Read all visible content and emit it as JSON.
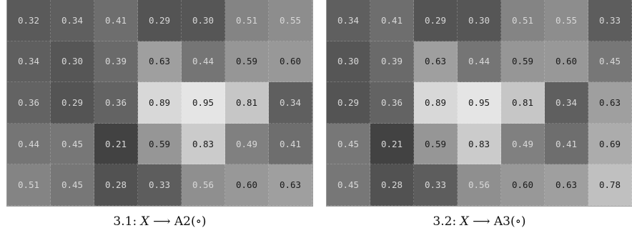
{
  "panels": [
    {
      "caption": "3.1: ",
      "caption_var": "X",
      "caption_arrow": " ⟶ ",
      "caption_target": "A2(∘)",
      "rows": [
        [
          "0.32",
          "0.34",
          "0.41",
          "0.29",
          "0.30",
          "0.51",
          "0.55"
        ],
        [
          "0.34",
          "0.30",
          "0.39",
          "0.63",
          "0.44",
          "0.59",
          "0.60"
        ],
        [
          "0.36",
          "0.29",
          "0.36",
          "0.89",
          "0.95",
          "0.81",
          "0.34"
        ],
        [
          "0.44",
          "0.45",
          "0.21",
          "0.59",
          "0.83",
          "0.49",
          "0.41"
        ],
        [
          "0.51",
          "0.45",
          "0.28",
          "0.33",
          "0.56",
          "0.60",
          "0.63"
        ]
      ]
    },
    {
      "caption": "3.2: ",
      "caption_var": "X",
      "caption_arrow": " ⟶ ",
      "caption_target": "A3(∘)",
      "rows": [
        [
          "0.34",
          "0.41",
          "0.29",
          "0.30",
          "0.51",
          "0.55",
          "0.33"
        ],
        [
          "0.30",
          "0.39",
          "0.63",
          "0.44",
          "0.59",
          "0.60",
          "0.45"
        ],
        [
          "0.29",
          "0.36",
          "0.89",
          "0.95",
          "0.81",
          "0.34",
          "0.63"
        ],
        [
          "0.45",
          "0.21",
          "0.59",
          "0.83",
          "0.49",
          "0.41",
          "0.69"
        ],
        [
          "0.45",
          "0.28",
          "0.33",
          "0.56",
          "0.60",
          "0.63",
          "0.78"
        ]
      ]
    }
  ]
}
